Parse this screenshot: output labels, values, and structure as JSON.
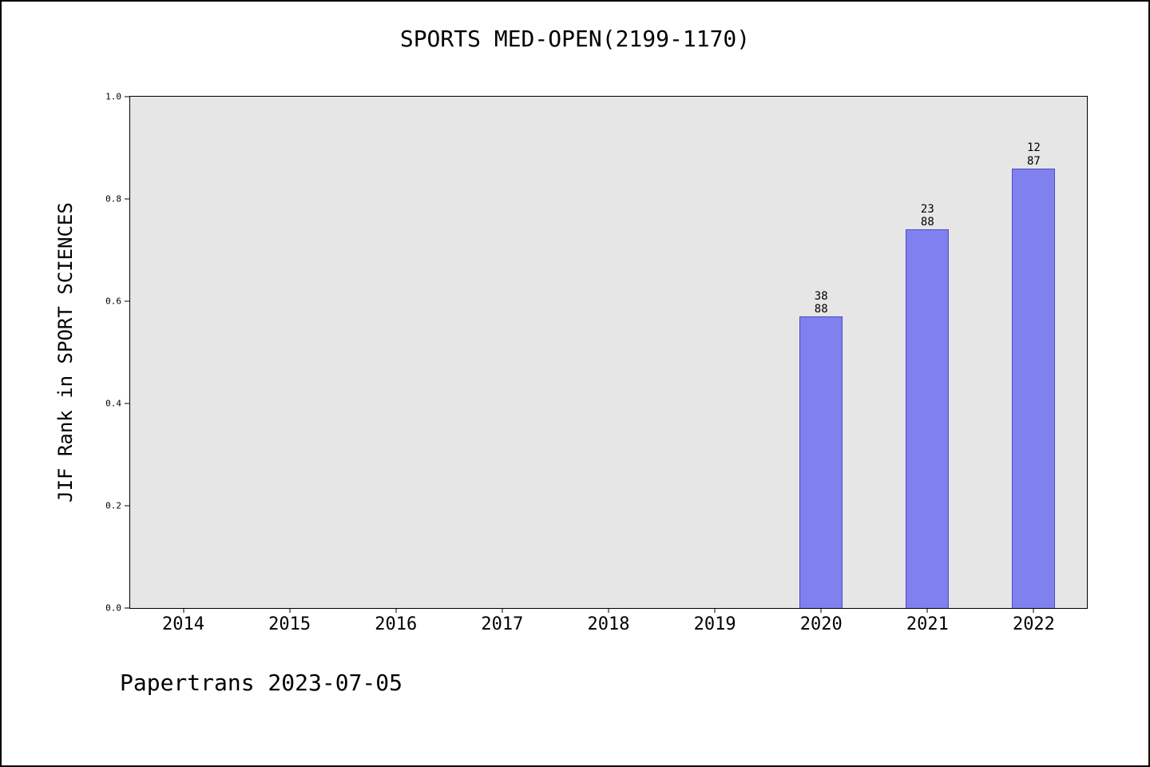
{
  "title": "SPORTS MED-OPEN(2199-1170)",
  "footer": "Papertrans 2023-07-05",
  "chart_data": {
    "type": "bar",
    "title": "SPORTS MED-OPEN(2199-1170)",
    "xlabel": "",
    "ylabel": "JIF Rank in SPORT SCIENCES",
    "categories": [
      "2014",
      "2015",
      "2016",
      "2017",
      "2018",
      "2019",
      "2020",
      "2021",
      "2022"
    ],
    "values": [
      null,
      null,
      null,
      null,
      null,
      null,
      0.57,
      0.74,
      0.86
    ],
    "bar_labels": [
      null,
      null,
      null,
      null,
      null,
      null,
      "38/88",
      "23/88",
      "12/87"
    ],
    "bar_label_lines": [
      null,
      null,
      null,
      null,
      null,
      null,
      [
        "38",
        "88"
      ],
      [
        "23",
        "88"
      ],
      [
        "12",
        "87"
      ]
    ],
    "ylim": [
      0.0,
      1.0
    ],
    "ytick_labels": [
      "0.0",
      "0.2",
      "0.4",
      "0.6",
      "0.8",
      "1.0"
    ],
    "grid": false,
    "legend": null,
    "bar_color": "#8080ee",
    "plot_background": "#e6e6e6"
  }
}
